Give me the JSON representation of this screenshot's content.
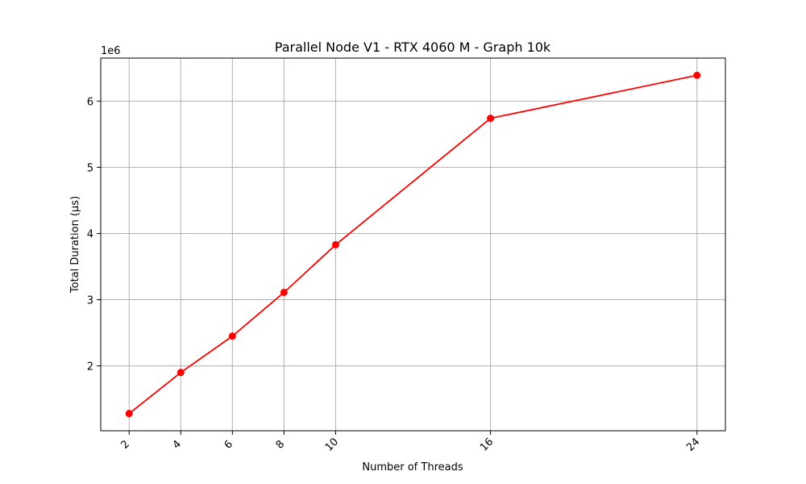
{
  "chart_data": {
    "type": "line",
    "title": "Parallel Node V1 - RTX 4060 M - Graph 10k",
    "xlabel": "Number of Threads",
    "ylabel": "Total Duration (µs)",
    "y_offset_label": "1e6",
    "x_ticks": [
      2,
      4,
      6,
      8,
      10,
      16,
      24
    ],
    "y_ticks": [
      2,
      3,
      4,
      5,
      6
    ],
    "y_scale": 1000000,
    "xlim": [
      0.9,
      25.1
    ],
    "ylim": [
      1020000,
      6650000
    ],
    "grid": true,
    "series": [
      {
        "color": "#ff0000",
        "marker": "circle",
        "x": [
          2,
          4,
          6,
          8,
          10,
          16,
          24
        ],
        "y": [
          1280000,
          1900000,
          2450000,
          3110000,
          3830000,
          5740000,
          6390000
        ]
      }
    ]
  }
}
